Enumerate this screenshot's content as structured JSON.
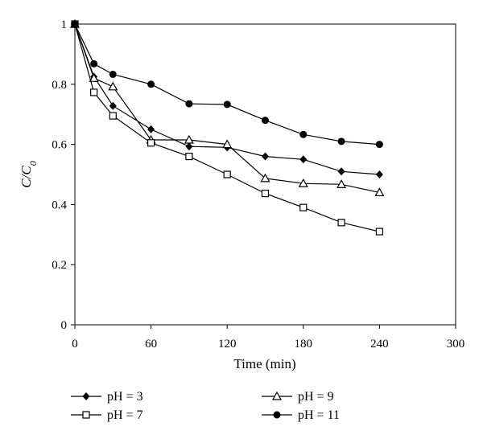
{
  "chart_data": {
    "type": "line",
    "xlabel": "Time (min)",
    "ylabel": {
      "main": "C/C",
      "sub": "0"
    },
    "xlim": [
      0,
      300
    ],
    "ylim": [
      0,
      1
    ],
    "xticks": [
      0,
      60,
      120,
      180,
      240,
      300
    ],
    "yticks": [
      0,
      0.2,
      0.4,
      0.6,
      0.8,
      1
    ],
    "xtick_labels": [
      "0",
      "60",
      "120",
      "180",
      "240",
      "300"
    ],
    "ytick_labels": [
      "0",
      "0.2",
      "0.4",
      "0.6",
      "0.8",
      "1"
    ],
    "grid": false,
    "legend_position": "bottom",
    "series": [
      {
        "name": "pH = 3",
        "marker": "diamond",
        "x": [
          0,
          15,
          30,
          60,
          90,
          120,
          150,
          180,
          210,
          240
        ],
        "y": [
          1,
          0.825,
          0.728,
          0.65,
          0.593,
          0.59,
          0.56,
          0.55,
          0.51,
          0.5
        ]
      },
      {
        "name": "pH = 9",
        "marker": "triangle-open",
        "x": [
          0,
          15,
          30,
          60,
          90,
          120,
          150,
          180,
          210,
          240
        ],
        "y": [
          1,
          0.82,
          0.792,
          0.615,
          0.615,
          0.6,
          0.487,
          0.47,
          0.467,
          0.44
        ]
      },
      {
        "name": "pH = 7",
        "marker": "square-open",
        "x": [
          0,
          15,
          30,
          60,
          90,
          120,
          150,
          180,
          210,
          240
        ],
        "y": [
          1,
          0.773,
          0.695,
          0.605,
          0.56,
          0.5,
          0.437,
          0.39,
          0.34,
          0.31
        ]
      },
      {
        "name": "pH = 11",
        "marker": "circle",
        "x": [
          0,
          15,
          30,
          60,
          90,
          120,
          150,
          180,
          210,
          240
        ],
        "y": [
          1,
          0.868,
          0.833,
          0.8,
          0.735,
          0.733,
          0.68,
          0.633,
          0.61,
          0.6
        ]
      }
    ]
  }
}
